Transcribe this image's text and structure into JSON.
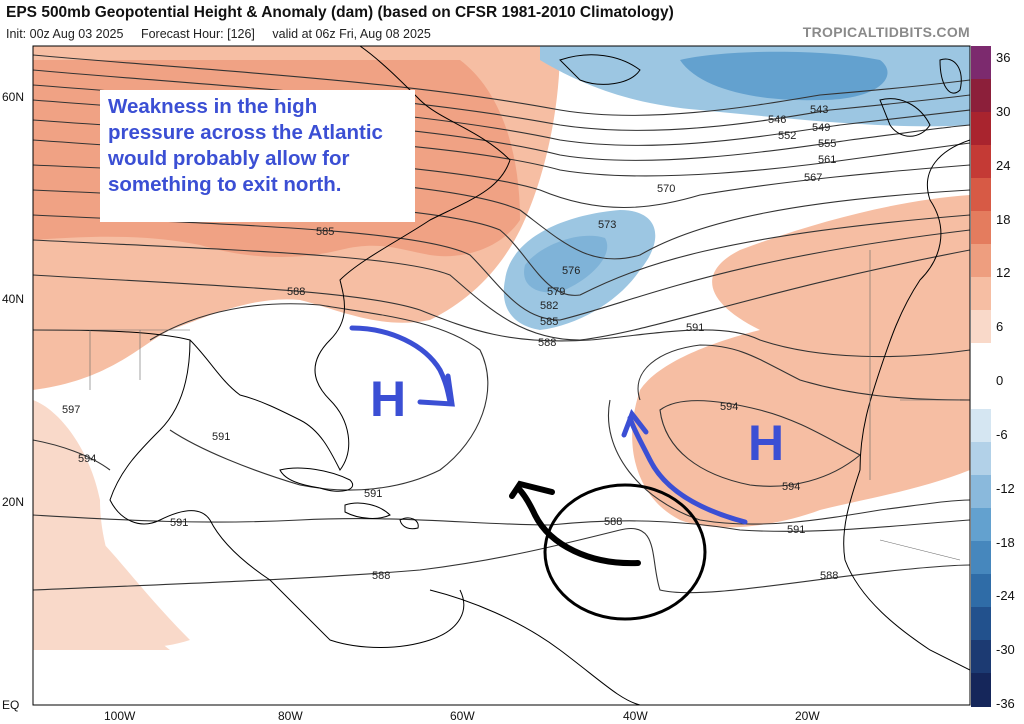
{
  "header": {
    "title": "EPS 500mb Geopotential Height & Anomaly (dam) (based on CFSR 1981-2010 Climatology)",
    "init": "Init: 00z Aug 03 2025",
    "forecast_hour": "Forecast Hour: [126]",
    "valid": "valid at 06z Fri, Aug 08 2025",
    "credit": "TROPICALTIDBITS.COM"
  },
  "annotation": {
    "text": "Weakness in the high pressure across the Atlantic would probably allow for something to exit north.",
    "color": "#3b4fd4"
  },
  "high_markers": [
    {
      "label": "H",
      "color": "#3b4fd4"
    },
    {
      "label": "H",
      "color": "#3b4fd4"
    }
  ],
  "axes": {
    "latitudes": [
      "60N",
      "40N",
      "20N",
      "EQ"
    ],
    "longitudes": [
      "100W",
      "80W",
      "60W",
      "40W",
      "20W"
    ]
  },
  "colorbar": {
    "labels": [
      "36",
      "30",
      "24",
      "18",
      "12",
      "6",
      "0",
      "-6",
      "-12",
      "-18",
      "-24",
      "-30",
      "-36"
    ],
    "positive_colors": [
      "#f9d9c9",
      "#f6bea3",
      "#ee9e7f",
      "#e47c5e",
      "#d75a45",
      "#c43a35",
      "#a9242e",
      "#8c1f3a",
      "#7c2a6e"
    ],
    "negative_colors": [
      "#d5e6f2",
      "#b2d1e8",
      "#8ab9dc",
      "#63a1cf",
      "#4687bd",
      "#2f6ca7",
      "#22518d",
      "#1c3a72",
      "#15265a"
    ]
  },
  "contour_labels": [
    "543",
    "546",
    "549",
    "552",
    "555",
    "561",
    "567",
    "570",
    "573",
    "576",
    "579",
    "582",
    "585",
    "585",
    "588",
    "588",
    "588",
    "588",
    "588",
    "591",
    "591",
    "591",
    "591",
    "591",
    "594",
    "594",
    "594",
    "597"
  ],
  "map_colors": {
    "ocean": "#ffffff",
    "land_outline": "#000000",
    "contour": "#333333",
    "positive_anomaly": "#f6bea3",
    "strong_positive_anomaly": "#ee9e7f",
    "negative_anomaly": "#9cc6e2",
    "strong_negative_anomaly": "#63a1cf",
    "arrow_blue": "#3b4fd4",
    "drawing_black": "#000000"
  }
}
